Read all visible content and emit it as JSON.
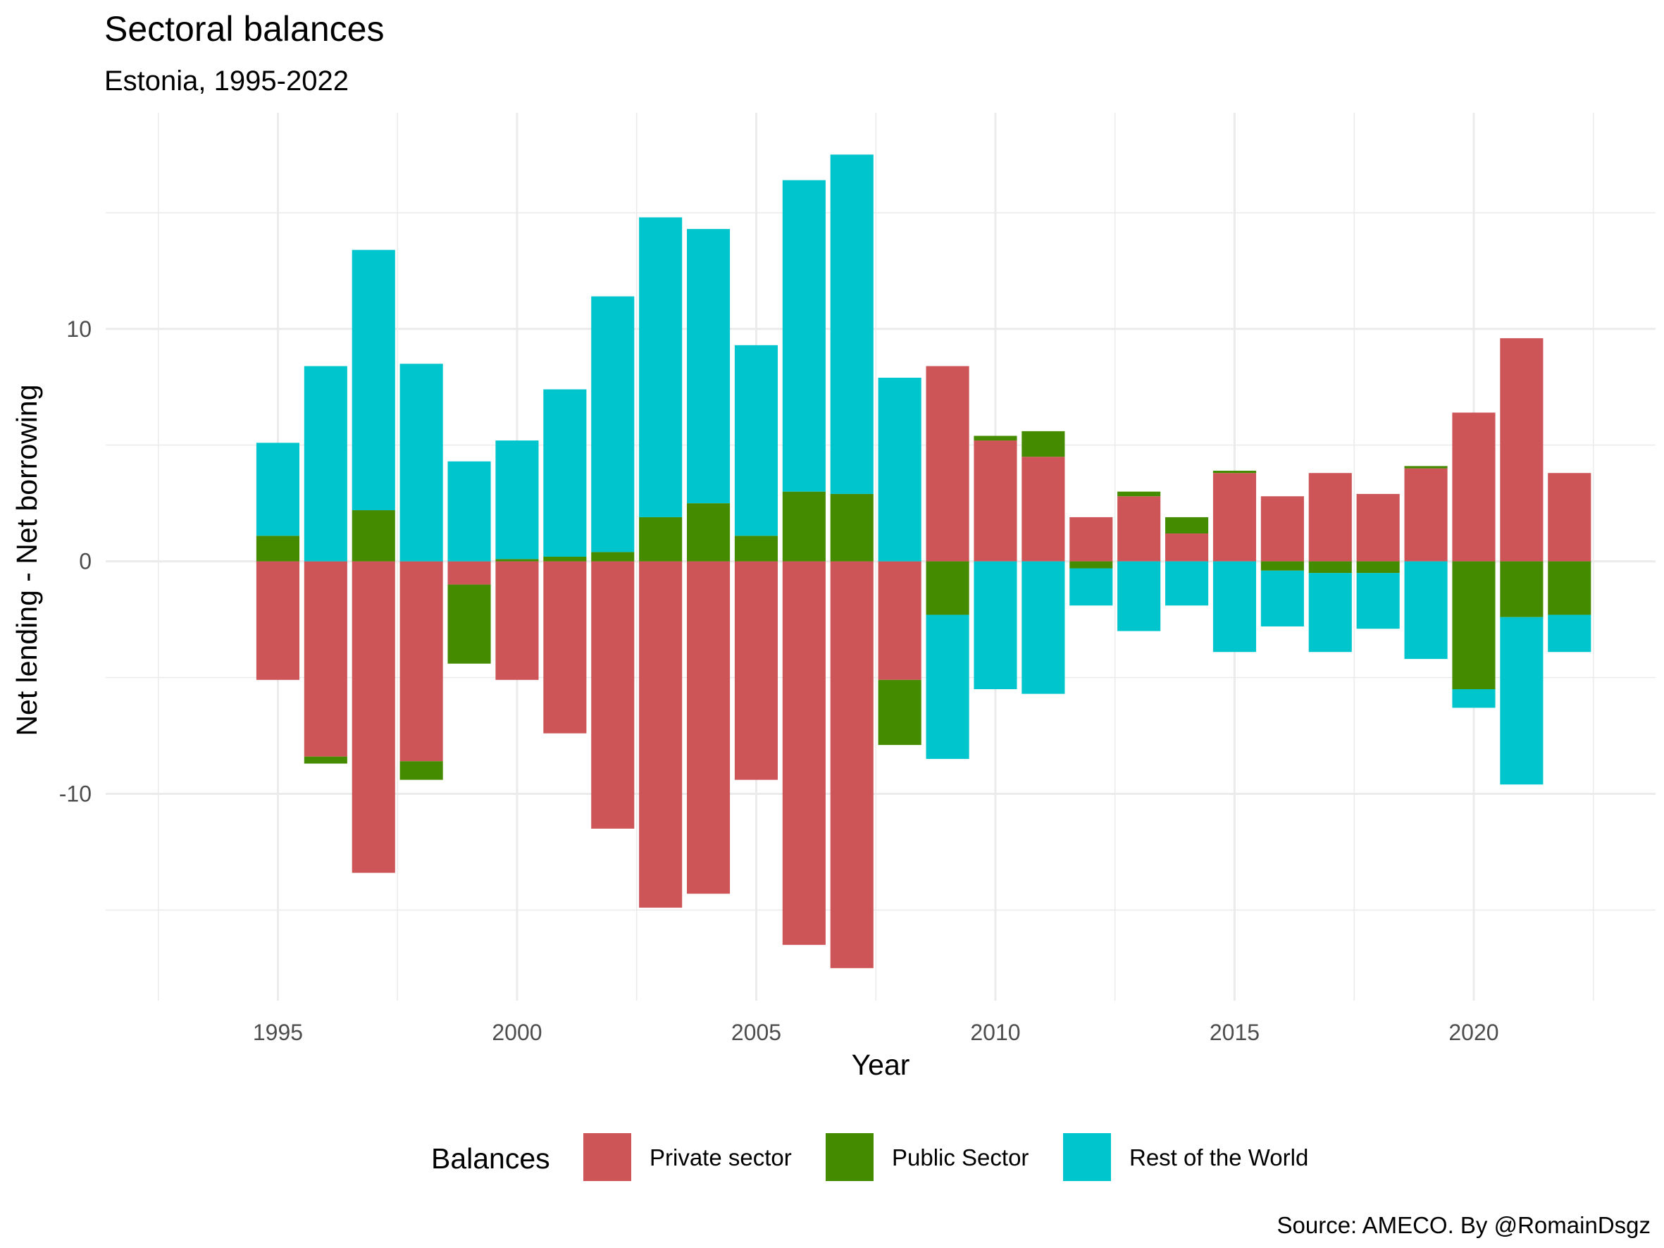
{
  "chart_data": {
    "type": "bar",
    "stacked": true,
    "title": "Sectoral balances",
    "subtitle": "Estonia, 1995-2022",
    "xlabel": "Year",
    "ylabel": "Net lending - Net borrowing",
    "caption": "Source: AMECO. By @RomainDsgz",
    "x": [
      1995,
      1996,
      1997,
      1998,
      1999,
      2000,
      2001,
      2002,
      2003,
      2004,
      2005,
      2006,
      2007,
      2008,
      2009,
      2010,
      2011,
      2012,
      2013,
      2014,
      2015,
      2016,
      2017,
      2018,
      2019,
      2020,
      2021,
      2022
    ],
    "xlim": [
      1991.4,
      2023.8
    ],
    "ylim": [
      -18.9,
      19.3
    ],
    "x_ticks": [
      1995,
      2000,
      2005,
      2010,
      2015,
      2020
    ],
    "y_ticks": [
      -10,
      0,
      10
    ],
    "y_tick_labels": [
      "-10",
      "0",
      "10"
    ],
    "grid": true,
    "legend": {
      "title": "Balances",
      "position": "bottom"
    },
    "series": [
      {
        "name": "Private sector",
        "color": "#CD5557",
        "values": [
          -5.1,
          -8.4,
          -13.4,
          -8.6,
          -1.0,
          -5.1,
          -7.4,
          -11.5,
          -14.9,
          -14.3,
          -9.4,
          -16.5,
          -17.5,
          -5.1,
          8.4,
          5.2,
          4.5,
          1.9,
          2.8,
          1.2,
          3.8,
          2.8,
          3.8,
          2.9,
          4.0,
          6.4,
          9.6,
          3.8
        ]
      },
      {
        "name": "Public Sector",
        "color": "#458B00",
        "values": [
          1.1,
          -0.3,
          2.2,
          -0.8,
          -3.4,
          0.1,
          0.2,
          0.4,
          1.9,
          2.5,
          1.1,
          3.0,
          2.9,
          -2.8,
          -2.3,
          0.2,
          1.1,
          -0.3,
          0.2,
          0.7,
          0.1,
          -0.4,
          -0.5,
          -0.5,
          0.1,
          -5.5,
          -2.4,
          -2.3
        ]
      },
      {
        "name": "Rest of the World",
        "color": "#00C5CD",
        "values": [
          4.0,
          8.4,
          11.2,
          8.5,
          4.3,
          5.1,
          7.2,
          11.0,
          12.9,
          11.8,
          8.2,
          13.4,
          14.6,
          7.9,
          -6.2,
          -5.5,
          -5.7,
          -1.6,
          -3.0,
          -1.9,
          -3.9,
          -2.4,
          -3.4,
          -2.4,
          -4.2,
          -0.8,
          -7.2,
          -1.6
        ]
      }
    ]
  }
}
